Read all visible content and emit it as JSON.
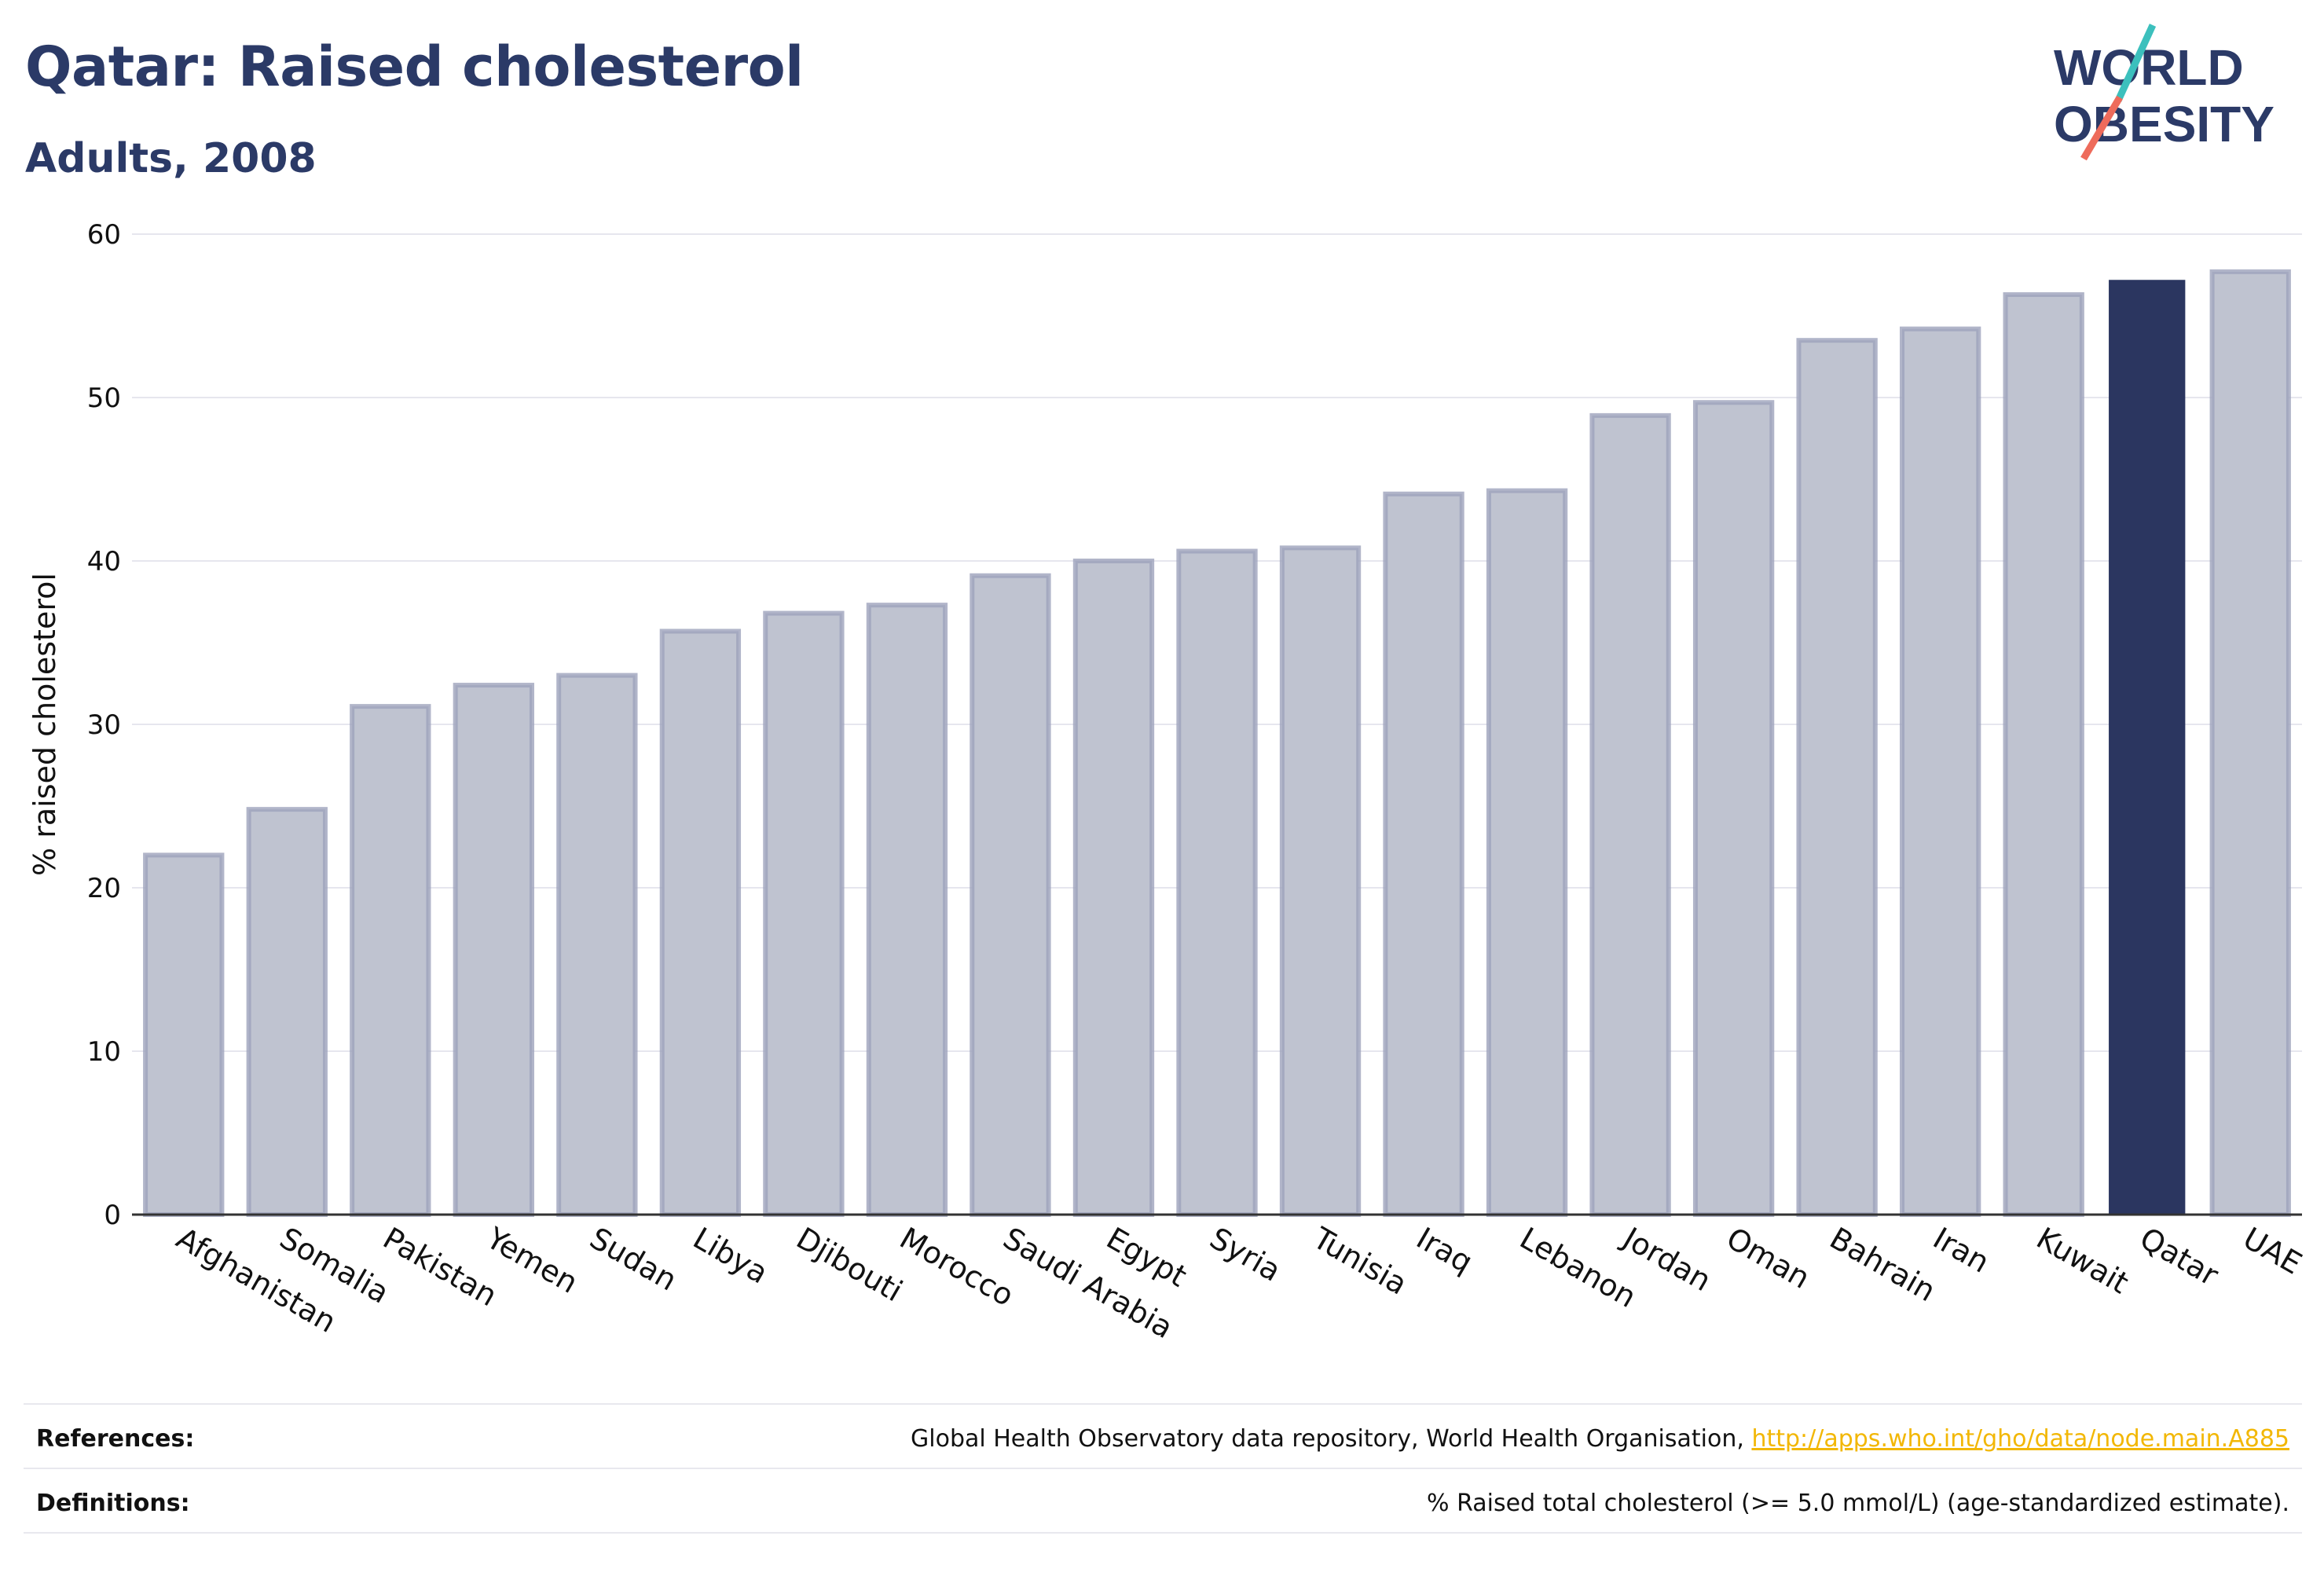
{
  "header": {
    "title": "Qatar: Raised cholesterol",
    "subtitle": "Adults, 2008"
  },
  "logo": {
    "line1": "WORLD",
    "line2": "OBESITY",
    "text_color": "#2b3a67",
    "slash_colors": [
      "#3cc0bd",
      "#ee6b5b"
    ]
  },
  "chart_data": {
    "type": "bar",
    "categories": [
      "Afghanistan",
      "Somalia",
      "Pakistan",
      "Yemen",
      "Sudan",
      "Libya",
      "Djibouti",
      "Morocco",
      "Saudi Arabia",
      "Egypt",
      "Syria",
      "Tunisia",
      "Iraq",
      "Lebanon",
      "Jordan",
      "Oman",
      "Bahrain",
      "Iran",
      "Kuwait",
      "Qatar",
      "UAE"
    ],
    "values": [
      22.0,
      24.8,
      31.1,
      32.4,
      33.0,
      35.7,
      36.8,
      37.3,
      39.1,
      40.0,
      40.6,
      40.8,
      44.1,
      44.3,
      48.9,
      49.7,
      53.5,
      54.2,
      56.3,
      57.2,
      57.7
    ],
    "highlight": "Qatar",
    "title": "",
    "xlabel": "",
    "ylabel": "% raised cholesterol",
    "ylim": [
      0,
      60
    ],
    "yticks": [
      0,
      10,
      20,
      30,
      40,
      50,
      60
    ],
    "grid": true,
    "colors": {
      "bar": "#bfc3d0",
      "bar_edge": "#9da3bb",
      "highlight": "#2b3660",
      "grid": "#e6e6ee"
    }
  },
  "footer": {
    "references_label": "References:",
    "references_text": "Global Health Observatory data repository, World Health Organisation, ",
    "references_link": "http://apps.who.int/gho/data/node.main.A885",
    "definitions_label": "Definitions:",
    "definitions_text": "% Raised total cholesterol (>= 5.0 mmol/L) (age-standardized estimate)."
  }
}
